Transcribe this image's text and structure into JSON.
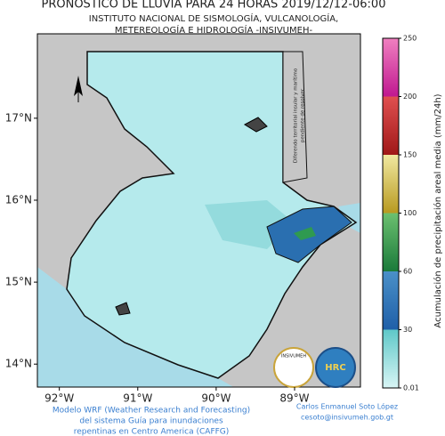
{
  "header": {
    "title": "PRONOSTICO DE LLUVIA PARA 24 HORAS 2019/12/12-06:00",
    "subtitle_lines": [
      "INSTITUTO NACIONAL DE SISMOLOGÍA, VULCANOLOGÍA,",
      "METEREOLOGÍA E HIDROLOGÍA -INSIVUMEH-"
    ]
  },
  "map": {
    "lonlim": [
      -92.28,
      -88.16
    ],
    "latlim": [
      13.72,
      18.03
    ],
    "xticks": [
      {
        "value": -92,
        "label": "92°W"
      },
      {
        "value": -91,
        "label": "91°W"
      },
      {
        "value": -90,
        "label": "90°W"
      },
      {
        "value": -89,
        "label": "89°W"
      }
    ],
    "yticks": [
      {
        "value": 17,
        "label": "17°N"
      },
      {
        "value": 16,
        "label": "16°N"
      },
      {
        "value": 15,
        "label": "15°N"
      },
      {
        "value": 14,
        "label": "14°N"
      }
    ],
    "border_note_lines": [
      "Diferendo territorial insular y marítimo",
      "pendiente de resolver"
    ]
  },
  "colorbar": {
    "label": "Acumulación de precipitación areal media (mm/24h)",
    "ticks": [
      0.01,
      30,
      60,
      100,
      150,
      200,
      250
    ],
    "colors": [
      [
        "#d8f5f5",
        "#5fc8c8"
      ],
      [
        "#1f5fa8",
        "#4a90c8"
      ],
      [
        "#1a7a3a",
        "#6cc070"
      ],
      [
        "#b89a20",
        "#f0e8a0"
      ],
      [
        "#a01818",
        "#e05050"
      ],
      [
        "#c01890",
        "#f080c0"
      ]
    ]
  },
  "footer": {
    "model_lines": [
      "Modelo WRF (Weather Research and Forecasting)",
      "del sistema Guía para inundaciones",
      "repentinas en Centro America (CAFFG)"
    ],
    "author": "Carlos Enmanuel Soto López",
    "email": "cesoto@insivumeh.gob.gt"
  },
  "logos": [
    "INSIVUMEH",
    "HRC"
  ]
}
